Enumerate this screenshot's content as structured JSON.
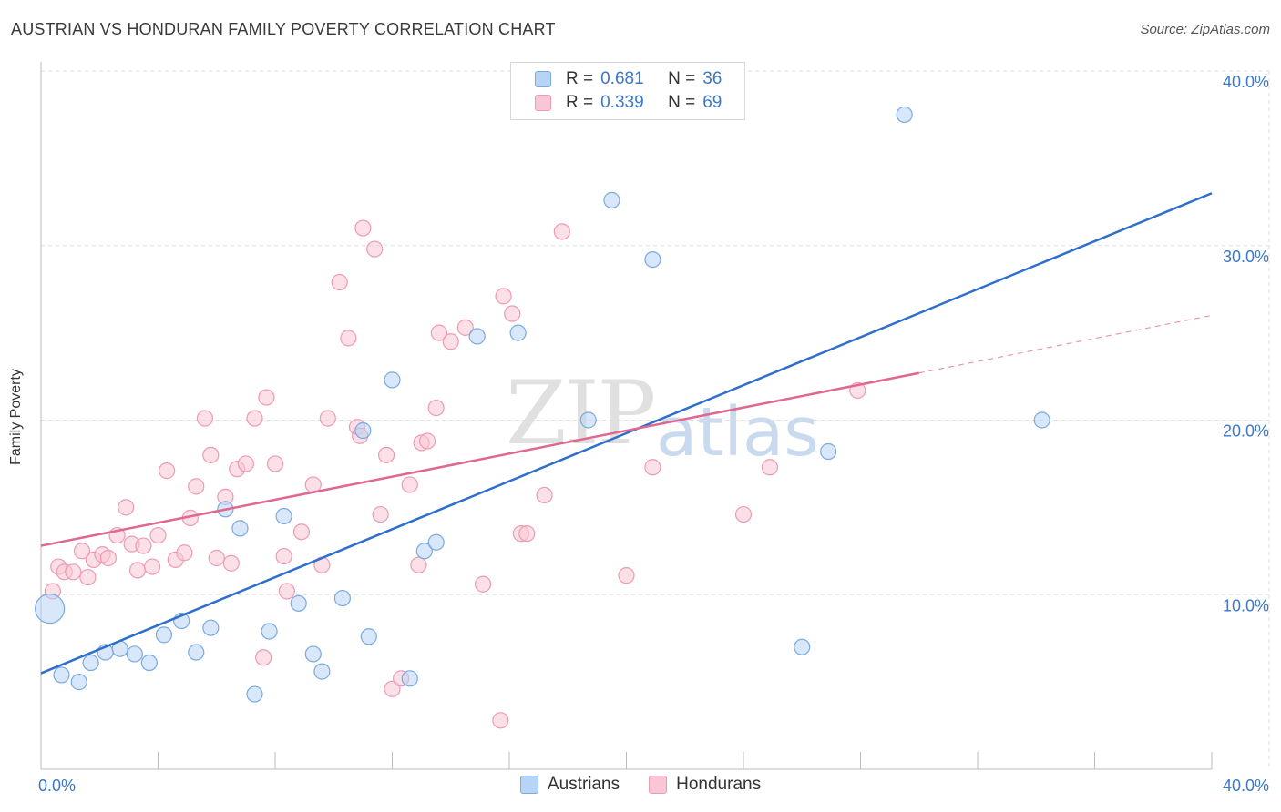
{
  "title": "AUSTRIAN VS HONDURAN FAMILY POVERTY CORRELATION CHART",
  "source": "Source: ZipAtlas.com",
  "watermark": {
    "zip": "ZIP",
    "atlas": "atlas"
  },
  "legend": {
    "r_label": "R =",
    "n_label": "N =",
    "rows": [
      {
        "r": "0.681",
        "n": "36"
      },
      {
        "r": "0.339",
        "n": "69"
      }
    ]
  },
  "colors": {
    "austrians_fill": "#b8d4f5",
    "austrians_stroke": "#7aaae0",
    "austrians_line": "#2f6fcc",
    "hondurans_fill": "#f8c6d4",
    "hondurans_stroke": "#ee9ab4",
    "hondurans_line": "#e06790",
    "tick_text": "#3b78c9",
    "grid": "#dddddd"
  },
  "chart_data": {
    "type": "scatter",
    "xlabel": "",
    "ylabel": "Family Poverty",
    "xlim": [
      0,
      40
    ],
    "ylim": [
      0,
      40
    ],
    "x_ticks": [
      0,
      40
    ],
    "x_tick_labels": [
      "0.0%",
      "40.0%"
    ],
    "y_ticks": [
      10,
      20,
      30,
      40
    ],
    "y_tick_labels": [
      "10.0%",
      "20.0%",
      "30.0%",
      "40.0%"
    ],
    "grid": true,
    "legend_position": "top-center",
    "series": [
      {
        "name": "Austrians",
        "r": 0.681,
        "n": 36,
        "trend": {
          "x": [
            0,
            40
          ],
          "y": [
            5.5,
            33.0
          ],
          "dashed_from": null
        },
        "points": [
          [
            0.3,
            9.2,
            "large"
          ],
          [
            0.7,
            5.4
          ],
          [
            1.3,
            5.0
          ],
          [
            1.7,
            6.1
          ],
          [
            2.2,
            6.7
          ],
          [
            2.7,
            6.9
          ],
          [
            3.2,
            6.6
          ],
          [
            3.7,
            6.1
          ],
          [
            4.2,
            7.7
          ],
          [
            4.8,
            8.5
          ],
          [
            5.3,
            6.7
          ],
          [
            5.8,
            8.1
          ],
          [
            6.3,
            14.9
          ],
          [
            6.8,
            13.8
          ],
          [
            7.3,
            4.3
          ],
          [
            7.8,
            7.9
          ],
          [
            8.3,
            14.5
          ],
          [
            8.8,
            9.5
          ],
          [
            9.3,
            6.6
          ],
          [
            9.6,
            5.6
          ],
          [
            10.3,
            9.8
          ],
          [
            11.0,
            19.4
          ],
          [
            11.2,
            7.6
          ],
          [
            12.0,
            22.3
          ],
          [
            12.6,
            5.2
          ],
          [
            13.1,
            12.5
          ],
          [
            13.5,
            13.0
          ],
          [
            14.9,
            24.8
          ],
          [
            16.3,
            25.0
          ],
          [
            18.7,
            20.0
          ],
          [
            19.5,
            32.6
          ],
          [
            20.9,
            29.2
          ],
          [
            26.0,
            7.0
          ],
          [
            26.9,
            18.2
          ],
          [
            29.5,
            37.5
          ],
          [
            34.2,
            20.0
          ]
        ]
      },
      {
        "name": "Hondurans",
        "r": 0.339,
        "n": 69,
        "trend": {
          "x": [
            0,
            40
          ],
          "y": [
            12.8,
            26.0
          ],
          "dashed_from": 30
        },
        "points": [
          [
            0.4,
            10.2
          ],
          [
            0.6,
            11.6
          ],
          [
            0.8,
            11.3
          ],
          [
            1.1,
            11.3
          ],
          [
            1.4,
            12.5
          ],
          [
            1.6,
            11.0
          ],
          [
            1.8,
            12.0
          ],
          [
            2.1,
            12.3
          ],
          [
            2.3,
            12.1
          ],
          [
            2.6,
            13.4
          ],
          [
            2.9,
            15.0
          ],
          [
            3.1,
            12.9
          ],
          [
            3.3,
            11.4
          ],
          [
            3.5,
            12.8
          ],
          [
            3.8,
            11.6
          ],
          [
            4.0,
            13.4
          ],
          [
            4.3,
            17.1
          ],
          [
            4.6,
            12.0
          ],
          [
            4.9,
            12.4
          ],
          [
            5.1,
            14.4
          ],
          [
            5.3,
            16.2
          ],
          [
            5.6,
            20.1
          ],
          [
            5.8,
            18.0
          ],
          [
            6.0,
            12.1
          ],
          [
            6.3,
            15.6
          ],
          [
            6.5,
            11.8
          ],
          [
            6.7,
            17.2
          ],
          [
            7.0,
            17.5
          ],
          [
            7.3,
            20.1
          ],
          [
            7.6,
            6.4
          ],
          [
            7.7,
            21.3
          ],
          [
            8.0,
            17.5
          ],
          [
            8.3,
            12.2
          ],
          [
            8.4,
            10.2
          ],
          [
            8.9,
            13.6
          ],
          [
            9.3,
            16.3
          ],
          [
            9.6,
            11.7
          ],
          [
            9.8,
            20.1
          ],
          [
            10.2,
            27.9
          ],
          [
            10.5,
            24.7
          ],
          [
            10.8,
            19.6
          ],
          [
            10.9,
            19.1
          ],
          [
            11.0,
            31.0
          ],
          [
            11.4,
            29.8
          ],
          [
            11.6,
            14.6
          ],
          [
            11.8,
            18.0
          ],
          [
            12.0,
            4.6
          ],
          [
            12.3,
            5.2
          ],
          [
            12.6,
            16.3
          ],
          [
            12.9,
            11.7
          ],
          [
            13.0,
            18.7
          ],
          [
            13.2,
            18.8
          ],
          [
            13.5,
            20.7
          ],
          [
            13.6,
            25.0
          ],
          [
            14.0,
            24.5
          ],
          [
            14.5,
            25.3
          ],
          [
            15.1,
            10.6
          ],
          [
            15.7,
            2.8
          ],
          [
            15.8,
            27.1
          ],
          [
            16.1,
            26.1
          ],
          [
            16.4,
            13.5
          ],
          [
            16.6,
            13.5
          ],
          [
            17.2,
            15.7
          ],
          [
            17.8,
            30.8
          ],
          [
            20.0,
            11.1
          ],
          [
            20.9,
            17.3
          ],
          [
            24.0,
            14.6
          ],
          [
            24.9,
            17.3
          ],
          [
            27.9,
            21.7
          ]
        ]
      }
    ]
  }
}
